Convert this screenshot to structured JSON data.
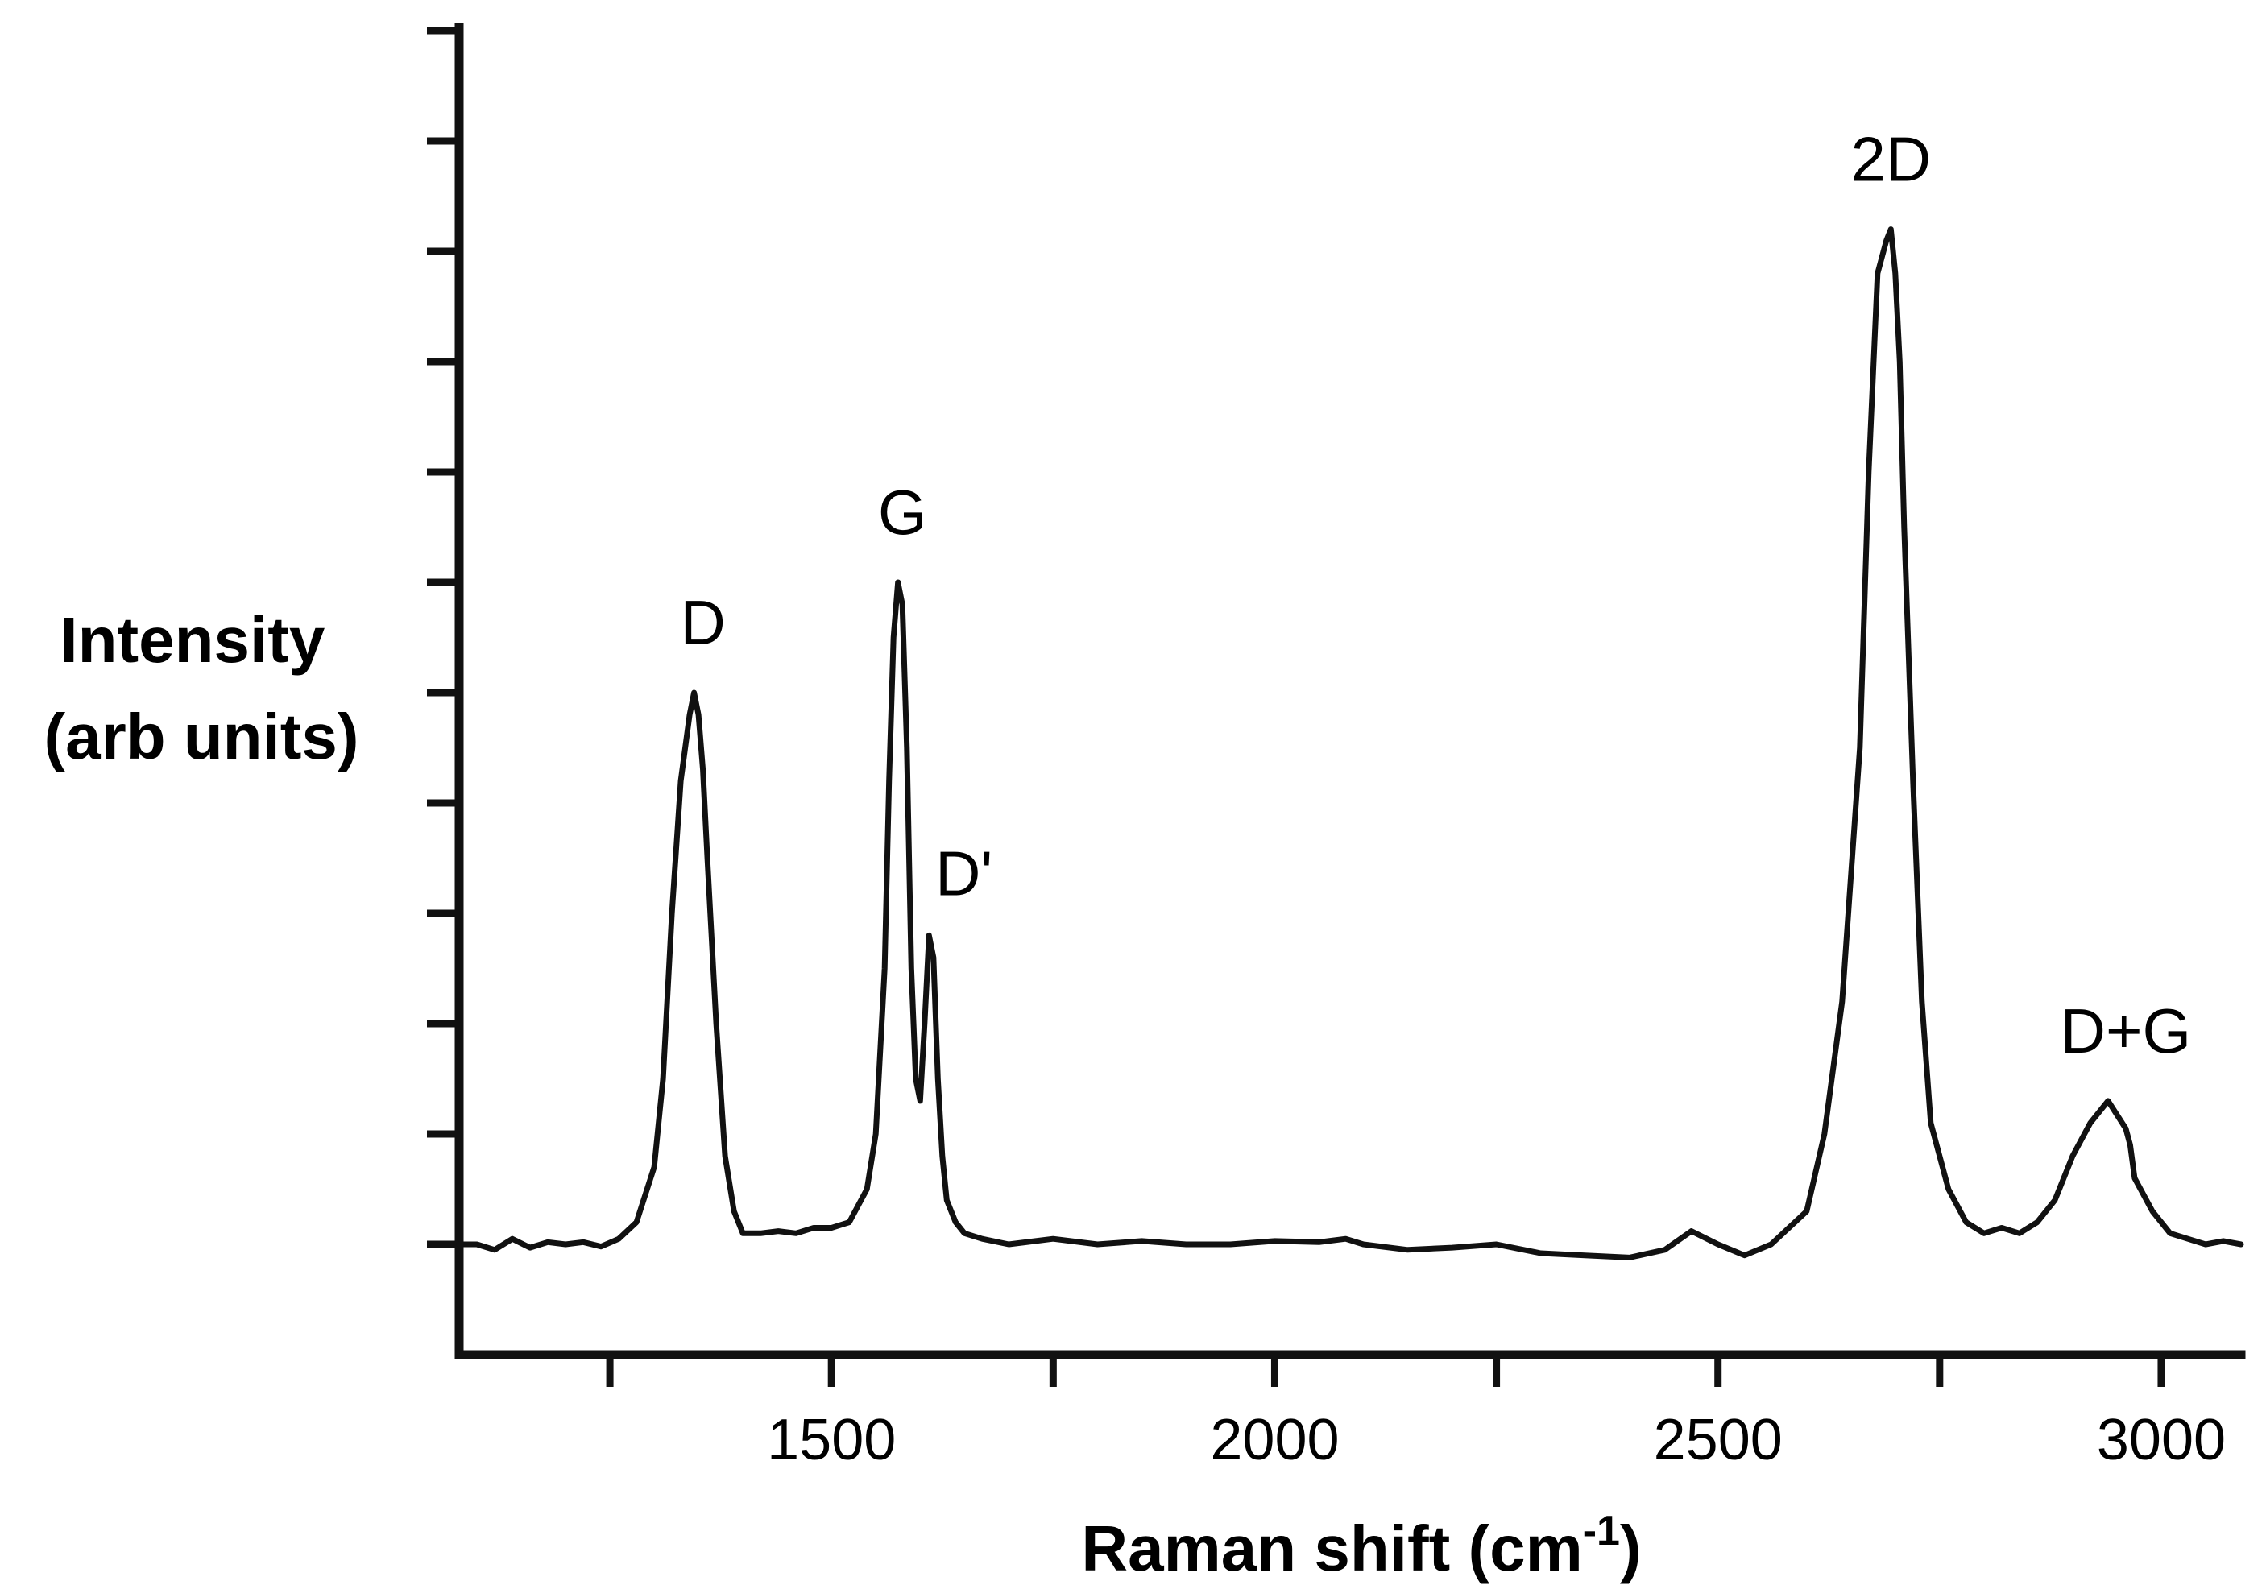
{
  "chart_data": {
    "type": "line",
    "title": "",
    "xlabel": "Raman shift (cm",
    "xlabel_sup": "-1",
    "xlabel_close": ")",
    "ylabel_lines": [
      "Intensity",
      "(arb units)"
    ],
    "xlim": [
      1080,
      3090
    ],
    "ylim": [
      -0.1,
      1.1
    ],
    "x_ticks_major": [
      1500,
      2000,
      2500,
      3000
    ],
    "x_tick_labels": [
      "1500",
      "2000",
      "2500",
      "3000"
    ],
    "x_ticks_minor": [
      1250,
      1750,
      2250,
      2750
    ],
    "y_ticks": [
      0.0,
      0.1,
      0.2,
      0.3,
      0.4,
      0.5,
      0.6,
      0.7,
      0.8,
      0.9,
      1.0,
      1.1
    ],
    "y_tick_labels_shown": false,
    "grid": false,
    "line_color": "#111111",
    "background_color": "#ffffff",
    "series": [
      {
        "x": [
          1080,
          1100,
          1120,
          1140,
          1160,
          1180,
          1200,
          1220,
          1240,
          1260,
          1280,
          1300,
          1310,
          1320,
          1330,
          1340,
          1345,
          1350,
          1355,
          1360,
          1370,
          1380,
          1390,
          1400,
          1420,
          1440,
          1460,
          1480,
          1500,
          1520,
          1540,
          1550,
          1560,
          1565,
          1570,
          1575,
          1580,
          1585,
          1590,
          1595,
          1600,
          1605,
          1610,
          1615,
          1620,
          1625,
          1630,
          1640,
          1650,
          1670,
          1700,
          1750,
          1800,
          1850,
          1900,
          1950,
          2000,
          2050,
          2080,
          2100,
          2150,
          2200,
          2250,
          2300,
          2350,
          2400,
          2440,
          2470,
          2500,
          2530,
          2560,
          2600,
          2620,
          2640,
          2660,
          2670,
          2680,
          2690,
          2695,
          2700,
          2705,
          2710,
          2720,
          2730,
          2740,
          2760,
          2780,
          2800,
          2820,
          2840,
          2860,
          2880,
          2900,
          2920,
          2940,
          2960,
          2965,
          2970,
          2990,
          3010,
          3030,
          3050,
          3070,
          3090
        ],
        "y": [
          0.0,
          0.0,
          -0.005,
          0.005,
          -0.003,
          0.002,
          0.0,
          0.002,
          -0.002,
          0.005,
          0.02,
          0.07,
          0.15,
          0.3,
          0.42,
          0.48,
          0.5,
          0.48,
          0.43,
          0.35,
          0.2,
          0.08,
          0.03,
          0.01,
          0.01,
          0.012,
          0.01,
          0.015,
          0.015,
          0.02,
          0.05,
          0.1,
          0.25,
          0.42,
          0.55,
          0.6,
          0.58,
          0.45,
          0.25,
          0.15,
          0.13,
          0.2,
          0.28,
          0.26,
          0.15,
          0.08,
          0.04,
          0.02,
          0.01,
          0.005,
          0.0,
          0.005,
          0.0,
          0.003,
          0.0,
          0.0,
          0.003,
          0.002,
          0.005,
          0.0,
          -0.005,
          -0.003,
          0.0,
          -0.008,
          -0.01,
          -0.012,
          -0.005,
          0.012,
          0.0,
          -0.01,
          0.0,
          0.03,
          0.1,
          0.22,
          0.45,
          0.7,
          0.88,
          0.91,
          0.92,
          0.88,
          0.8,
          0.65,
          0.42,
          0.22,
          0.11,
          0.05,
          0.02,
          0.01,
          0.015,
          0.01,
          0.02,
          0.04,
          0.08,
          0.11,
          0.13,
          0.105,
          0.09,
          0.06,
          0.03,
          0.01,
          0.005,
          0.0,
          0.003,
          0.0
        ]
      }
    ],
    "annotations": [
      {
        "text": "D",
        "x": 1355,
        "y": 0.5
      },
      {
        "text": "G",
        "x": 1580,
        "y": 0.6
      },
      {
        "text": "D'",
        "x": 1608,
        "y": 0.28
      },
      {
        "text": "2D",
        "x": 2695,
        "y": 0.92
      },
      {
        "text": "D+G",
        "x": 2960,
        "y": 0.13
      }
    ]
  }
}
